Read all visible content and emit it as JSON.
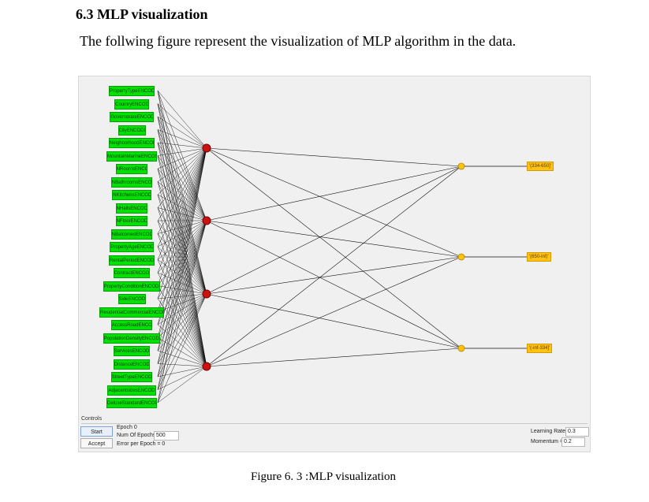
{
  "section": {
    "heading": "6.3 MLP visualization",
    "intro": "The follwing figure represent the visualization of MLP algorithm in the data."
  },
  "figure": {
    "input_nodes": [
      "PropertyTypeENCODE",
      "CountryENCODE",
      "GovernorateENCODE",
      "CityENCODE",
      "NeighborhoodENCODE",
      "MountainMarineENCODE",
      "NRoomsENCODE",
      "NBathroomsENCODE",
      "NKitchensENCODE",
      "NHallsENCODE",
      "NFloorENCODE",
      "NBalconiesENCODE",
      "PropertyAgeENCODE",
      "RentalPeriodENCODE",
      "ContractENCODE",
      "PropertyConditionENCODE",
      "SideENCODE",
      "ResidentialCommercialENCODE",
      "AccessRoadENCODE",
      "PopulationDensityENCODE",
      "ServicesENCODE",
      "DistanceENCODE",
      "StreetTypeENCODE",
      "AdjacentsidesENCODE",
      "DeluxeStandardENCODE"
    ],
    "hidden_node_count": 4,
    "output_nodes": [
      "'(334-650]'",
      "'(650-inf)'",
      "'(-inf-334]'"
    ],
    "colors": {
      "input": "#00e000",
      "hidden": "#cc1111",
      "output": "#ffc20e",
      "edge": "#111111"
    }
  },
  "controls": {
    "title": "Controls",
    "start_label": "Start",
    "accept_label": "Accept",
    "epoch_label": "Epoch",
    "epoch_value": "0",
    "num_epochs_label": "Num Of Epochs",
    "num_epochs_value": "500",
    "error_label": "Error per Epoch = 0",
    "learning_rate_label": "Learning Rate =",
    "learning_rate_value": "0.3",
    "momentum_label": "Momentum =",
    "momentum_value": "0.2"
  },
  "caption": "Figure 6. 3 :MLP visualization"
}
